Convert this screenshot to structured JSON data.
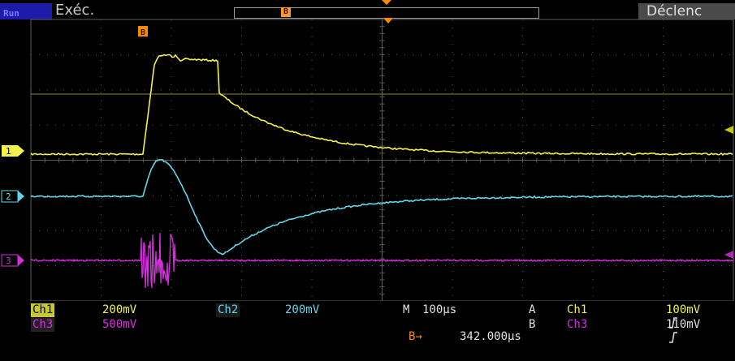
{
  "status": {
    "run_tag": "Run",
    "run_label": "Exéc.",
    "trigger_status": "Déclenc"
  },
  "markers": {
    "zoom_marker": "B",
    "channel_markers": [
      "1",
      "2",
      "3"
    ]
  },
  "readouts": {
    "ch1_name": "Ch1",
    "ch1_scale": "200mV",
    "ch2_name": "Ch2",
    "ch2_scale": "200mV",
    "ch3_name": "Ch3",
    "ch3_scale": "500mV",
    "timebase_label": "M",
    "timebase": "100µs",
    "trigA_label": "A",
    "trigA_source": "Ch1",
    "trigA_slope_icon": "rising-edge-icon",
    "trigA_level": "100mV",
    "trigB_label": "B",
    "trigB_source": "Ch3",
    "trigB_slope_icon": "rising-edge-icon",
    "trigB_level": "110mV",
    "delay_label": "B→",
    "delay_value": "342.000µs"
  },
  "colors": {
    "ch1": "#f2f24a",
    "ch2": "#62d6e8",
    "ch3": "#d82ee0",
    "grid": "#5c5c5c",
    "accent": "#ff8a00",
    "background": "#000000"
  }
}
